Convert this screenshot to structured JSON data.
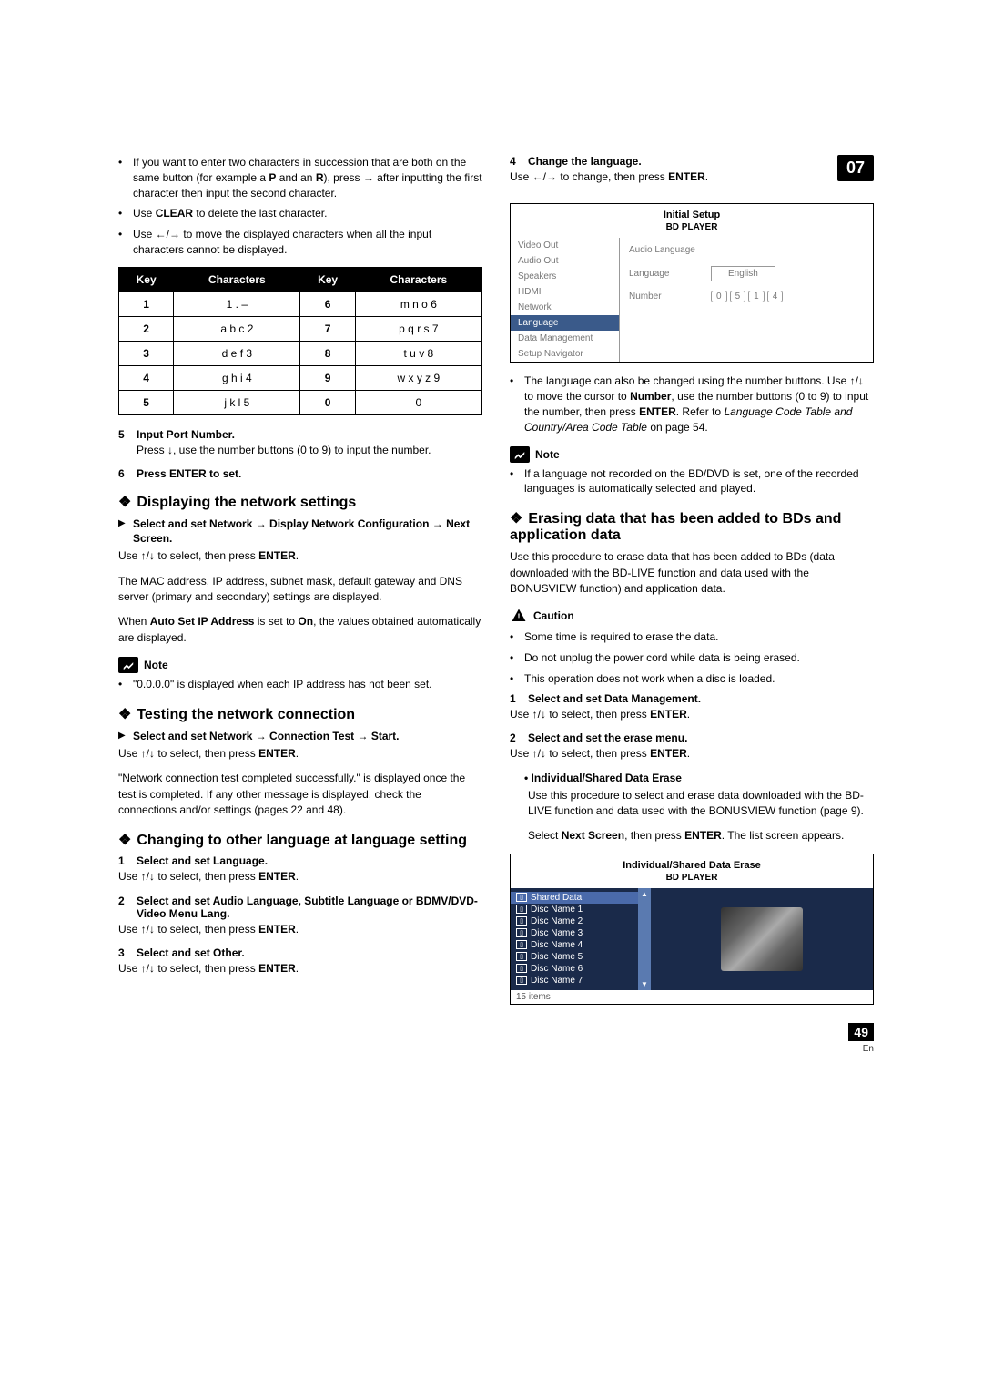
{
  "badge": "07",
  "page_number": "49",
  "page_lang": "En",
  "left": {
    "bullets": [
      {
        "pre": "If you want to enter two characters in succession that are both on the same button (for example a ",
        "b1": "P",
        "mid": " and an ",
        "b2": "R",
        "post": "), press → after inputting the first character then input the second character."
      },
      {
        "pre": "Use ",
        "b1": "CLEAR",
        "post": " to delete the last character."
      },
      {
        "pre": "Use ←/→ to move the displayed characters when all the input characters cannot be displayed."
      }
    ],
    "table": {
      "headers": [
        "Key",
        "Characters",
        "Key",
        "Characters"
      ],
      "rows": [
        [
          "1",
          "1 . –",
          "6",
          "m n o 6"
        ],
        [
          "2",
          "a b c 2",
          "7",
          "p q r s 7"
        ],
        [
          "3",
          "d e f 3",
          "8",
          "t u v 8"
        ],
        [
          "4",
          "g h i 4",
          "9",
          "w x y z 9"
        ],
        [
          "5",
          "j k l 5",
          "0",
          "0"
        ]
      ]
    },
    "step5": {
      "n": "5",
      "t": "Input Port Number.",
      "desc": "Press ↓, use the number buttons (0 to 9) to input the number."
    },
    "step6": {
      "n": "6",
      "t": "Press ENTER to set."
    },
    "sec_display": {
      "title": "Displaying the network settings",
      "sub": "Select and set Network → Display Network Configuration → Next Screen.",
      "use": "Use ↑/↓ to select, then press ",
      "enter": "ENTER",
      "p1": "The MAC address, IP address, subnet mask, default gateway and DNS server (primary and secondary) settings are displayed.",
      "p2a": "When ",
      "p2b": "Auto Set IP Address",
      "p2c": " is set to ",
      "p2d": "On",
      "p2e": ", the values obtained automatically are displayed.",
      "note": "\"0.0.0.0\" is displayed when each IP address has not been set."
    },
    "sec_test": {
      "title": "Testing the network connection",
      "sub": "Select and set Network → Connection Test → Start.",
      "use": "Use ↑/↓ to select, then press ",
      "enter": "ENTER",
      "p1": "\"Network connection test completed successfully.\" is displayed once the test is completed. If any other message is displayed, check the connections and/or settings (pages 22 and 48)."
    },
    "sec_lang": {
      "title": "Changing to other language at language setting",
      "s1": {
        "n": "1",
        "t": "Select and set Language."
      },
      "use": "Use ↑/↓ to select, then press ",
      "enter": "ENTER",
      "s2": {
        "n": "2",
        "t": "Select and set Audio Language, Subtitle Language or BDMV/DVD-Video Menu Lang."
      },
      "s3": {
        "n": "3",
        "t": "Select and set Other."
      }
    }
  },
  "right": {
    "s4": {
      "n": "4",
      "t": "Change the language.",
      "desc_a": "Use ←/→ to change, then press ",
      "desc_b": "ENTER",
      "desc_c": "."
    },
    "panel": {
      "title": "Initial Setup",
      "sub": "BD PLAYER",
      "sidebar": [
        "Video Out",
        "Audio Out",
        "Speakers",
        "HDMI",
        "Network",
        "Language",
        "Data Management",
        "Setup Navigator"
      ],
      "main_label": "Audio Language",
      "row_lang": {
        "lbl": "Language",
        "val": "English"
      },
      "row_num": {
        "lbl": "Number",
        "vals": [
          "0",
          "5",
          "1",
          "4"
        ]
      }
    },
    "after_panel": {
      "pre": "The language can also be changed using the number buttons. Use ↑/↓ to move the cursor to ",
      "b1": "Number",
      "mid": ", use the number buttons (0 to 9) to input the number, then press ",
      "b2": "ENTER",
      "post": ". Refer to ",
      "i1": "Language Code Table and Country/Area Code Table",
      "tail": " on page 54."
    },
    "note1": "If a language not recorded on the BD/DVD is set, one of the recorded languages is automatically selected and played.",
    "sec_erase": {
      "title": "Erasing data that has been added to BDs and application data",
      "p1": "Use this procedure to erase data that has been added to BDs (data downloaded with the BD-LIVE function and data used with the BONUSVIEW function) and application data.",
      "caution": [
        "Some time is required to erase the data.",
        "Do not unplug the power cord while data is being erased.",
        "This operation does not work when a disc is loaded."
      ],
      "s1": {
        "n": "1",
        "t": "Select and set Data Management."
      },
      "use": "Use ↑/↓ to select, then press ",
      "enter": "ENTER",
      "s2": {
        "n": "2",
        "t": "Select and set the erase menu."
      },
      "sub_bold": "Individual/Shared Data Erase",
      "sub_p1": "Use this procedure to select and erase data downloaded with the BD-LIVE function and data used with the BONUSVIEW function (page 9).",
      "sub_p2a": "Select ",
      "sub_p2b": "Next Screen",
      "sub_p2c": ", then press ",
      "sub_p2d": "ENTER",
      "sub_p2e": ". The list screen appears."
    },
    "erase_panel": {
      "title": "Individual/Shared Data Erase",
      "sub": "BD PLAYER",
      "items": [
        "Shared Data",
        "Disc Name 1",
        "Disc Name 2",
        "Disc Name 3",
        "Disc Name 4",
        "Disc Name 5",
        "Disc Name 6",
        "Disc Name 7"
      ],
      "footer": "15 items"
    }
  },
  "note_label": "Note",
  "caution_label": "Caution"
}
